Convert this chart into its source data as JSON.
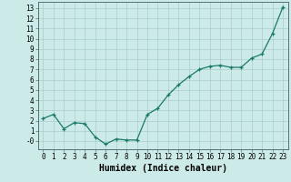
{
  "x": [
    0,
    1,
    2,
    3,
    4,
    5,
    6,
    7,
    8,
    9,
    10,
    11,
    12,
    13,
    14,
    15,
    16,
    17,
    18,
    19,
    20,
    21,
    22,
    23
  ],
  "y": [
    2.2,
    2.6,
    1.2,
    1.8,
    1.7,
    0.4,
    -0.3,
    0.2,
    0.1,
    0.1,
    2.6,
    3.2,
    4.5,
    5.5,
    6.3,
    7.0,
    7.3,
    7.4,
    7.2,
    7.2,
    8.1,
    8.5,
    10.5,
    13.1
  ],
  "line_color": "#1a7a6a",
  "marker": "+",
  "marker_size": 3,
  "linewidth": 0.9,
  "background_color": "#cceae7",
  "grid_color": "#aacdc9",
  "xlabel": "Humidex (Indice chaleur)",
  "xlabel_fontsize": 7,
  "ytick_labels": [
    "13",
    "12",
    "11",
    "10",
    "9",
    "8",
    "7",
    "6",
    "5",
    "4",
    "3",
    "2",
    "1",
    "-0"
  ],
  "ytick_values": [
    13,
    12,
    11,
    10,
    9,
    8,
    7,
    6,
    5,
    4,
    3,
    2,
    1,
    0
  ],
  "xticks": [
    0,
    1,
    2,
    3,
    4,
    5,
    6,
    7,
    8,
    9,
    10,
    11,
    12,
    13,
    14,
    15,
    16,
    17,
    18,
    19,
    20,
    21,
    22,
    23
  ],
  "ylim": [
    -0.8,
    13.6
  ],
  "xlim": [
    -0.5,
    23.5
  ],
  "tick_fontsize": 5.5,
  "font_family": "monospace"
}
